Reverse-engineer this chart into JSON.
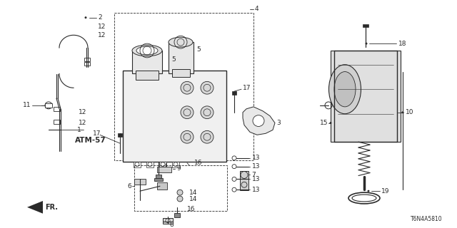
{
  "bg_color": "#ffffff",
  "diagram_color": "#2a2a2a",
  "part_number_label": "T6N4A5810",
  "atm_label": "ATM-57",
  "fig_w": 6.4,
  "fig_h": 3.2,
  "dpi": 100
}
